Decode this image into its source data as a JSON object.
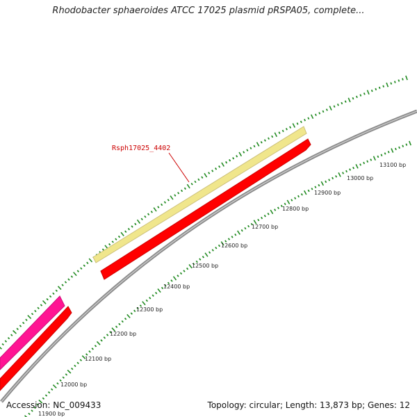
{
  "title": "Rhodobacter sphaeroides ATCC 17025 plasmid pRSPA05, complete...",
  "footer": {
    "accession": "Accession: NC_009433",
    "summary": "Topology: circular; Length: 13,873 bp; Genes: 12"
  },
  "colors": {
    "backbone": "#8a8a8a",
    "gene_forward": "#ff0000",
    "gene_highlight": "#f0e68c",
    "gene_other": "#ff1493",
    "tick": "#228b22",
    "gene_label": "#cc0000"
  },
  "gene_labels": [
    {
      "text": "Rsph17025_4402"
    }
  ],
  "scale_labels": [
    {
      "bp": 11900,
      "text": "11900 bp"
    },
    {
      "bp": 12000,
      "text": "12000 bp"
    },
    {
      "bp": 12100,
      "text": "12100 bp"
    },
    {
      "bp": 12200,
      "text": "12200 bp"
    },
    {
      "bp": 12300,
      "text": "12300 bp"
    },
    {
      "bp": 12400,
      "text": "12400 bp"
    },
    {
      "bp": 12500,
      "text": "12500 bp"
    },
    {
      "bp": 12600,
      "text": "12600 bp"
    },
    {
      "bp": 12700,
      "text": "12700 bp"
    },
    {
      "bp": 12800,
      "text": "12800 bp"
    },
    {
      "bp": 12900,
      "text": "12900 bp"
    },
    {
      "bp": 13000,
      "text": "13000 bp"
    },
    {
      "bp": 13100,
      "text": "13100 bp"
    }
  ]
}
